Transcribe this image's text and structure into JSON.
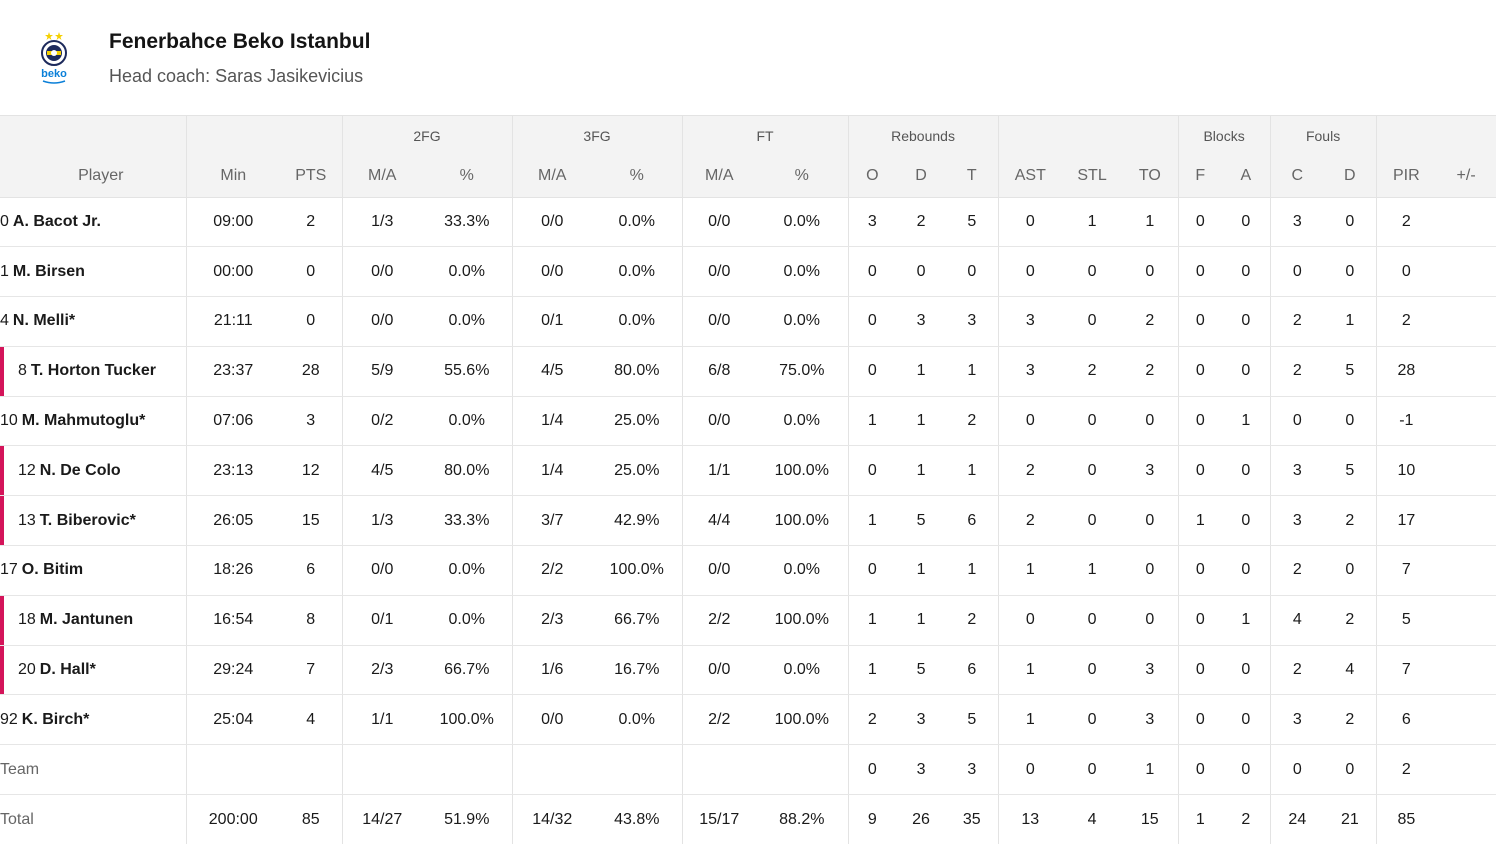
{
  "team": {
    "name": "Fenerbahce Beko Istanbul",
    "coach": "Head coach: Saras Jasikevicius",
    "logo_text": "beko",
    "colors": {
      "navy": "#1d2a5c",
      "yellow": "#f5d000",
      "beko_blue": "#0a7fd8",
      "starter_bar": "#d4145a"
    }
  },
  "groups": {
    "fg2": "2FG",
    "fg3": "3FG",
    "ft": "FT",
    "reb": "Rebounds",
    "blk": "Blocks",
    "fouls": "Fouls"
  },
  "columns": [
    "Player",
    "Min",
    "PTS",
    "M/A",
    "%",
    "M/A",
    "%",
    "M/A",
    "%",
    "O",
    "D",
    "T",
    "AST",
    "STL",
    "TO",
    "F",
    "A",
    "C",
    "D",
    "PIR",
    "+/-"
  ],
  "rows": [
    {
      "num": "0",
      "name": "A. Bacot Jr.",
      "starter": false,
      "stats": [
        "09:00",
        "2",
        "1/3",
        "33.3%",
        "0/0",
        "0.0%",
        "0/0",
        "0.0%",
        "3",
        "2",
        "5",
        "0",
        "1",
        "1",
        "0",
        "0",
        "3",
        "0",
        "2",
        ""
      ]
    },
    {
      "num": "1",
      "name": "M. Birsen",
      "starter": false,
      "stats": [
        "00:00",
        "0",
        "0/0",
        "0.0%",
        "0/0",
        "0.0%",
        "0/0",
        "0.0%",
        "0",
        "0",
        "0",
        "0",
        "0",
        "0",
        "0",
        "0",
        "0",
        "0",
        "0",
        ""
      ]
    },
    {
      "num": "4",
      "name": "N. Melli*",
      "starter": false,
      "stats": [
        "21:11",
        "0",
        "0/0",
        "0.0%",
        "0/1",
        "0.0%",
        "0/0",
        "0.0%",
        "0",
        "3",
        "3",
        "3",
        "0",
        "2",
        "0",
        "0",
        "2",
        "1",
        "2",
        ""
      ]
    },
    {
      "num": "8",
      "name": "T. Horton Tucker",
      "starter": true,
      "stats": [
        "23:37",
        "28",
        "5/9",
        "55.6%",
        "4/5",
        "80.0%",
        "6/8",
        "75.0%",
        "0",
        "1",
        "1",
        "3",
        "2",
        "2",
        "0",
        "0",
        "2",
        "5",
        "28",
        ""
      ]
    },
    {
      "num": "10",
      "name": "M. Mahmutoglu*",
      "starter": false,
      "stats": [
        "07:06",
        "3",
        "0/2",
        "0.0%",
        "1/4",
        "25.0%",
        "0/0",
        "0.0%",
        "1",
        "1",
        "2",
        "0",
        "0",
        "0",
        "0",
        "1",
        "0",
        "0",
        "-1",
        ""
      ]
    },
    {
      "num": "12",
      "name": "N. De Colo",
      "starter": true,
      "stats": [
        "23:13",
        "12",
        "4/5",
        "80.0%",
        "1/4",
        "25.0%",
        "1/1",
        "100.0%",
        "0",
        "1",
        "1",
        "2",
        "0",
        "3",
        "0",
        "0",
        "3",
        "5",
        "10",
        ""
      ]
    },
    {
      "num": "13",
      "name": "T. Biberovic*",
      "starter": true,
      "stats": [
        "26:05",
        "15",
        "1/3",
        "33.3%",
        "3/7",
        "42.9%",
        "4/4",
        "100.0%",
        "1",
        "5",
        "6",
        "2",
        "0",
        "0",
        "1",
        "0",
        "3",
        "2",
        "17",
        ""
      ]
    },
    {
      "num": "17",
      "name": "O. Bitim",
      "starter": false,
      "stats": [
        "18:26",
        "6",
        "0/0",
        "0.0%",
        "2/2",
        "100.0%",
        "0/0",
        "0.0%",
        "0",
        "1",
        "1",
        "1",
        "1",
        "0",
        "0",
        "0",
        "2",
        "0",
        "7",
        ""
      ]
    },
    {
      "num": "18",
      "name": "M. Jantunen",
      "starter": true,
      "stats": [
        "16:54",
        "8",
        "0/1",
        "0.0%",
        "2/3",
        "66.7%",
        "2/2",
        "100.0%",
        "1",
        "1",
        "2",
        "0",
        "0",
        "0",
        "0",
        "1",
        "4",
        "2",
        "5",
        ""
      ]
    },
    {
      "num": "20",
      "name": "D. Hall*",
      "starter": true,
      "stats": [
        "29:24",
        "7",
        "2/3",
        "66.7%",
        "1/6",
        "16.7%",
        "0/0",
        "0.0%",
        "1",
        "5",
        "6",
        "1",
        "0",
        "3",
        "0",
        "0",
        "2",
        "4",
        "7",
        ""
      ]
    },
    {
      "num": "92",
      "name": "K. Birch*",
      "starter": false,
      "stats": [
        "25:04",
        "4",
        "1/1",
        "100.0%",
        "0/0",
        "0.0%",
        "2/2",
        "100.0%",
        "2",
        "3",
        "5",
        "1",
        "0",
        "3",
        "0",
        "0",
        "3",
        "2",
        "6",
        ""
      ]
    },
    {
      "num": "",
      "name": "Team",
      "muted": true,
      "starter": false,
      "stats": [
        "",
        "",
        "",
        "",
        "",
        "",
        "",
        "",
        "0",
        "3",
        "3",
        "0",
        "0",
        "1",
        "0",
        "0",
        "0",
        "0",
        "2",
        ""
      ]
    },
    {
      "num": "",
      "name": "Total",
      "muted": true,
      "starter": false,
      "stats": [
        "200:00",
        "85",
        "14/27",
        "51.9%",
        "14/32",
        "43.8%",
        "15/17",
        "88.2%",
        "9",
        "26",
        "35",
        "13",
        "4",
        "15",
        "1",
        "2",
        "24",
        "21",
        "85",
        ""
      ]
    }
  ]
}
